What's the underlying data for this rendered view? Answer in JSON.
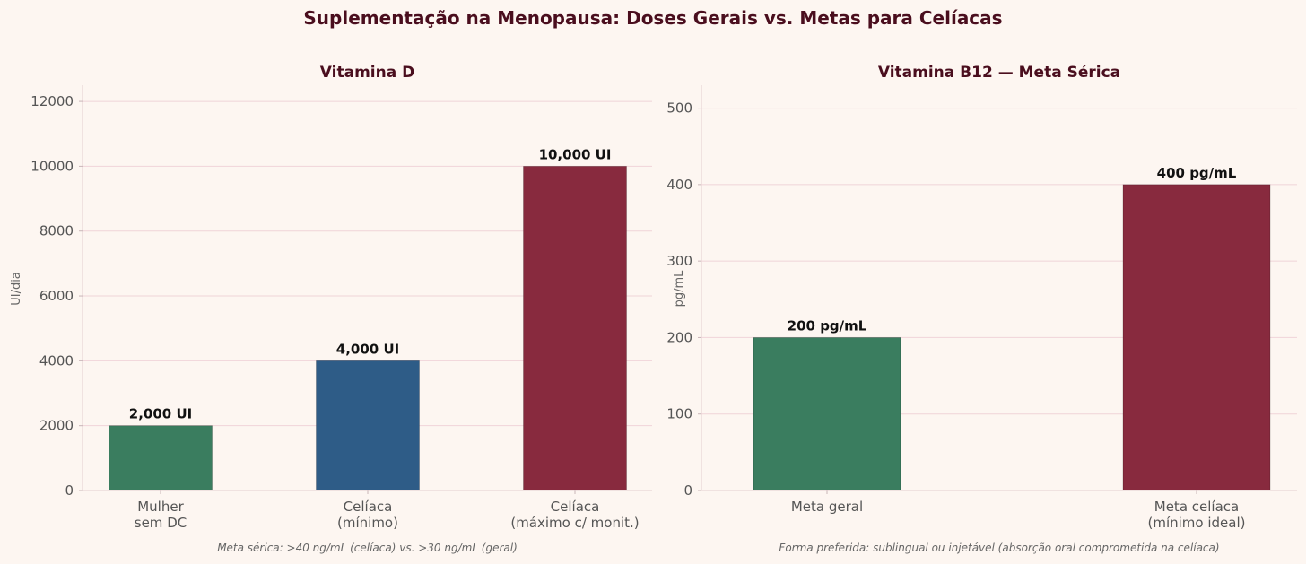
{
  "title": "Suplementação na Menopausa: Doses Gerais vs. Metas para Celíacas",
  "colors": {
    "green": "#3a7d5f",
    "blue": "#2e5c87",
    "wine": "#882a3e",
    "title": "#4a0e1e"
  },
  "chart_data": [
    {
      "type": "bar",
      "title": "Vitamina D",
      "ylabel": "UI/dia",
      "categories": [
        [
          "Mulher",
          "sem DC"
        ],
        [
          "Celíaca",
          "(mínimo)"
        ],
        [
          "Celíaca",
          "(máximo c/ monit.)"
        ]
      ],
      "values": [
        2000,
        4000,
        10000
      ],
      "labels": [
        "2,000 UI",
        "4,000 UI",
        "10,000 UI"
      ],
      "colors": [
        "#3a7d5f",
        "#2e5c87",
        "#882a3e"
      ],
      "ylim": [
        0,
        12500
      ],
      "yticks": [
        0,
        2000,
        4000,
        6000,
        8000,
        10000,
        12000
      ],
      "grid": true,
      "note": "Meta sérica: >40 ng/mL (celíaca) vs. >30 ng/mL (geral)"
    },
    {
      "type": "bar",
      "title": "Vitamina B12 — Meta Sérica",
      "ylabel": "pg/mL",
      "categories": [
        [
          "Meta geral"
        ],
        [
          "Meta celíaca",
          "(mínimo ideal)"
        ]
      ],
      "values": [
        200,
        400
      ],
      "labels": [
        "200 pg/mL",
        "400 pg/mL"
      ],
      "colors": [
        "#3a7d5f",
        "#882a3e"
      ],
      "ylim": [
        0,
        530
      ],
      "yticks": [
        0,
        100,
        200,
        300,
        400,
        500
      ],
      "grid": true,
      "note": "Forma preferida: sublingual ou injetável (absorção oral comprometida na celíaca)"
    }
  ]
}
